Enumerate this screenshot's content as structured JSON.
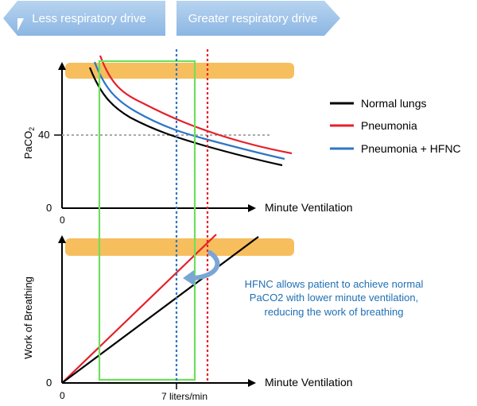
{
  "banner": {
    "left_label": "Less respiratory drive",
    "right_label": "Greater respiratory drive",
    "fill_color": "#9cc3ea"
  },
  "top_panel": {
    "y_axis_label_main": "PaCO",
    "y_axis_label_sub": "2",
    "x_axis_label": "Minute Ventilation",
    "tick_40": "40",
    "tick_y0": "0",
    "tick_x0": "0"
  },
  "bottom_panel": {
    "y_axis_label": "Work of Breathing",
    "x_axis_label": "Minute Ventilation",
    "tick_y0": "0",
    "tick_x0": "0",
    "tick_7": "7 liters/min"
  },
  "legend": {
    "items": [
      {
        "label": "Normal lungs",
        "color": "#000000"
      },
      {
        "label": "Pneumonia",
        "color": "#e5202a"
      },
      {
        "label": "Pneumonia + HFNC",
        "color": "#2d76c6"
      }
    ]
  },
  "annotation": {
    "lines": [
      "HFNC allows patient to achieve normal",
      "PaCO2 with lower minute ventilation,",
      "reducing the work of breathing"
    ]
  },
  "colors": {
    "band": "#f7be5d",
    "box": "#6de05a",
    "blue_dotted": "#2d76c6",
    "red_dotted": "#e5202a",
    "curved_arrow": "#7aa6d6"
  }
}
